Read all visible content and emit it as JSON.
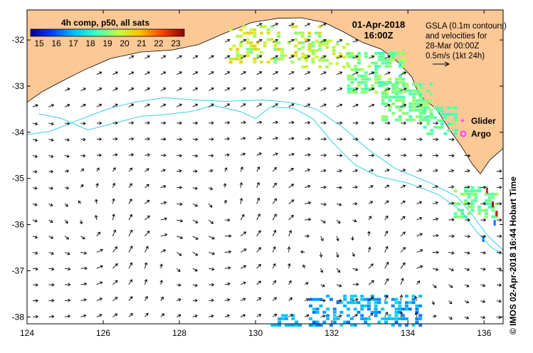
{
  "map": {
    "lon_min": 124,
    "lon_max": 136.5,
    "lat_min": -38.15,
    "lat_max": -31.35,
    "lon_ticks": [
      124,
      126,
      128,
      130,
      132,
      134,
      136
    ],
    "lat_ticks": [
      -32,
      -33,
      -34,
      -35,
      -36,
      -37,
      -38
    ],
    "lon_tick_labels": [
      "124",
      "126",
      "128",
      "130",
      "132",
      "134",
      "136"
    ],
    "lat_tick_labels": [
      "-32",
      "-33",
      "-34",
      "-35",
      "-36",
      "-37",
      "-38"
    ],
    "land_color": "#fcc896",
    "sea_color": "#ffffff",
    "contour_color": "#33d0e0"
  },
  "colorbar": {
    "title": "4h comp, p50, all sats",
    "ticks": [
      15,
      16,
      17,
      18,
      19,
      20,
      21,
      22,
      23
    ],
    "labels": [
      "15",
      "16",
      "17",
      "18",
      "19",
      "20",
      "21",
      "22",
      "23"
    ],
    "min": 14.5,
    "max": 23.5,
    "stops": [
      "#00008f",
      "#0040ff",
      "#00c0ff",
      "#40ffc0",
      "#c0ff40",
      "#ffc000",
      "#ff4000",
      "#8f0000"
    ]
  },
  "header": {
    "date": "01-Apr-2018",
    "time": "16:00Z"
  },
  "gsla": {
    "line1": "GSLA (0.1m contours)",
    "line2": "and velocities for",
    "line3": "28-Mar 00:00Z",
    "line4": "0.5m/s (1kt 24h)"
  },
  "legend": {
    "glider": "Glider",
    "glider_color": "#ff40ff",
    "argo": "Argo",
    "argo_color": "#ff40ff"
  },
  "footer": {
    "credit": "© IMOS 02-Apr-2018 16:44 Hobart Time"
  }
}
